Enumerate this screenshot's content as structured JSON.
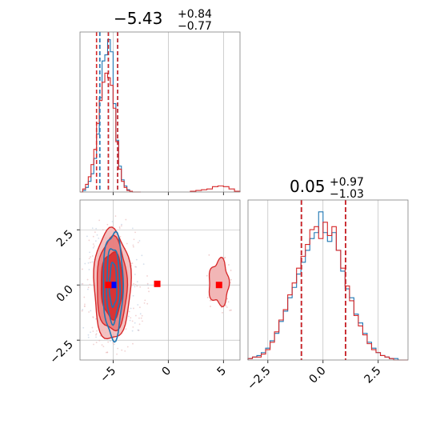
{
  "colors": {
    "blue": "#1f77b4",
    "red": "#d62728",
    "grid": "#b0b0b0",
    "frame": "#808080"
  },
  "chart_data": [
    {
      "type": "histogram",
      "panel": "top-left",
      "title": {
        "main": "−5.43",
        "sup": "+0.84",
        "sub": "−0.77"
      },
      "xlim": [
        -8,
        6.5
      ],
      "x_ticks": [
        -5,
        0,
        5
      ],
      "grid": true,
      "bin_edges": [
        -8.0,
        -7.75,
        -7.5,
        -7.25,
        -7.0,
        -6.75,
        -6.5,
        -6.25,
        -6.0,
        -5.75,
        -5.5,
        -5.25,
        -5.0,
        -4.75,
        -4.5,
        -4.25,
        -4.0,
        -3.75,
        -3.5,
        -3.25,
        -3.0,
        -2.75,
        -2.5
      ],
      "series": [
        {
          "color": "blue",
          "values": [
            0,
            0.01,
            0.03,
            0.07,
            0.12,
            0.22,
            0.38,
            0.62,
            0.86,
            0.9,
            1.0,
            0.92,
            0.58,
            0.34,
            0.17,
            0.08,
            0.04,
            0.015,
            0.005,
            0,
            0,
            0
          ],
          "quantiles": [
            -6.2,
            -5.43,
            -4.59
          ]
        },
        {
          "color": "red",
          "values": [
            0,
            0.02,
            0.05,
            0.1,
            0.18,
            0.28,
            0.45,
            0.6,
            0.72,
            0.78,
            0.75,
            0.7,
            0.55,
            0.33,
            0.15,
            0.07,
            0.03,
            0.01,
            0.005,
            0,
            0,
            0
          ],
          "quantiles": [
            -6.5,
            -5.43,
            -4.59
          ],
          "tail_edges": [
            2.0,
            2.5,
            3.0,
            3.5,
            4.0,
            4.5,
            5.0,
            5.5,
            6.0,
            6.5
          ],
          "tail_values": [
            0.005,
            0.01,
            0.015,
            0.02,
            0.035,
            0.04,
            0.035,
            0.02,
            0.005
          ]
        }
      ]
    },
    {
      "type": "contour",
      "panel": "bottom-left",
      "xlim": [
        -8,
        6.5
      ],
      "ylim": [
        -3.4,
        3.85
      ],
      "x_ticks": [
        -5,
        0,
        5
      ],
      "y_ticks": [
        -2.5,
        0.0,
        2.5
      ],
      "y_tick_labels": [
        "−2.5",
        "0.0",
        "2.5"
      ],
      "grid": true,
      "main_blob": {
        "cx": -5.1,
        "cy": 0.0,
        "levels": [
          {
            "rx": 2.7,
            "ry": 2.5
          },
          {
            "rx": 2.2,
            "ry": 2.1
          },
          {
            "rx": 1.6,
            "ry": 1.5
          }
        ]
      },
      "blue_blob": {
        "cx": -5.0,
        "cy": 0.0,
        "levels": [
          {
            "rx": 1.5,
            "ry": 2.4
          },
          {
            "rx": 1.0,
            "ry": 1.7
          },
          {
            "rx": 0.55,
            "ry": 1.0
          }
        ]
      },
      "side_blob": {
        "cx": 4.6,
        "cy": 0.1,
        "rx": 0.9,
        "ry": 1.0
      },
      "markers": [
        {
          "color": "blue",
          "x": -5.0,
          "y": 0.0
        },
        {
          "color": "red",
          "x": -5.43,
          "y": 0.0
        },
        {
          "color": "red",
          "x": -1.0,
          "y": 0.05
        },
        {
          "color": "red",
          "x": 4.6,
          "y": 0.0
        }
      ]
    },
    {
      "type": "histogram",
      "panel": "bottom-right",
      "title": {
        "main": "0.05",
        "sup": "+0.97",
        "sub": "−1.03"
      },
      "xlim": [
        -3.4,
        3.85
      ],
      "x_ticks": [
        -2.5,
        0.0,
        2.5
      ],
      "x_tick_labels": [
        "−2.5",
        "0.0",
        "2.5"
      ],
      "grid": true,
      "bin_edges": [
        -3.4,
        -3.2,
        -3.0,
        -2.8,
        -2.6,
        -2.4,
        -2.2,
        -2.0,
        -1.8,
        -1.6,
        -1.4,
        -1.2,
        -1.0,
        -0.8,
        -0.6,
        -0.4,
        -0.2,
        0.0,
        0.2,
        0.4,
        0.6,
        0.8,
        1.0,
        1.2,
        1.4,
        1.6,
        1.8,
        2.0,
        2.2,
        2.4,
        2.6,
        2.8,
        3.0,
        3.2,
        3.4,
        3.6,
        3.85
      ],
      "series": [
        {
          "color": "blue",
          "values": [
            0.01,
            0.02,
            0.03,
            0.05,
            0.08,
            0.13,
            0.18,
            0.26,
            0.33,
            0.42,
            0.49,
            0.58,
            0.66,
            0.74,
            0.82,
            0.86,
            1.0,
            0.86,
            0.8,
            0.86,
            0.74,
            0.6,
            0.48,
            0.42,
            0.31,
            0.25,
            0.18,
            0.12,
            0.08,
            0.05,
            0.03,
            0.02,
            0.01,
            0.01,
            0.0,
            0.0
          ],
          "quantiles": [
            -0.98,
            0.05,
            1.02
          ]
        },
        {
          "color": "red",
          "values": [
            0.01,
            0.02,
            0.02,
            0.04,
            0.07,
            0.12,
            0.19,
            0.27,
            0.34,
            0.44,
            0.52,
            0.62,
            0.7,
            0.78,
            0.88,
            0.9,
            0.82,
            0.93,
            0.84,
            0.9,
            0.74,
            0.62,
            0.5,
            0.4,
            0.3,
            0.23,
            0.17,
            0.11,
            0.07,
            0.05,
            0.03,
            0.02,
            0.01,
            0.0,
            0.0,
            0.0
          ],
          "quantiles": [
            -0.98,
            0.05,
            1.02
          ]
        }
      ]
    }
  ]
}
